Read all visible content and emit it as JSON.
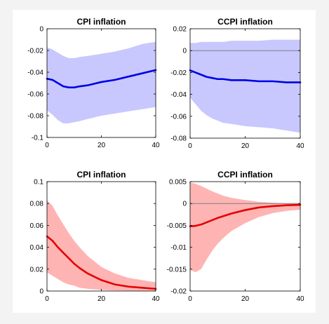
{
  "chart_data": [
    {
      "type": "line",
      "title": "CPI inflation",
      "xlim": [
        0,
        40
      ],
      "ylim": [
        -0.1,
        0
      ],
      "xticks": [
        0,
        20,
        40
      ],
      "xtick_labels": [
        "0",
        "20",
        "40"
      ],
      "yticks": [
        0,
        -0.02,
        -0.04,
        -0.06,
        -0.08,
        -0.1
      ],
      "ytick_labels": [
        "0",
        "-0.02",
        "-0.04",
        "-0.06",
        "-0.08",
        "-0.1"
      ],
      "zero_line": false,
      "line_color": "#0000e6",
      "band_color": "#c8c8ff",
      "x": [
        0,
        2,
        4,
        6,
        8,
        10,
        12,
        15,
        20,
        25,
        30,
        35,
        40
      ],
      "values": [
        -0.046,
        -0.047,
        -0.05,
        -0.053,
        -0.054,
        -0.054,
        -0.053,
        -0.052,
        -0.049,
        -0.047,
        -0.044,
        -0.041,
        -0.038
      ],
      "upper": [
        -0.017,
        -0.019,
        -0.022,
        -0.025,
        -0.027,
        -0.027,
        -0.026,
        -0.025,
        -0.023,
        -0.021,
        -0.018,
        -0.014,
        -0.012
      ],
      "lower": [
        -0.075,
        -0.079,
        -0.084,
        -0.087,
        -0.087,
        -0.086,
        -0.085,
        -0.083,
        -0.08,
        -0.078,
        -0.076,
        -0.074,
        -0.072
      ]
    },
    {
      "type": "line",
      "title": "CCPI inflation",
      "xlim": [
        0,
        40
      ],
      "ylim": [
        -0.08,
        0.02
      ],
      "xticks": [
        0,
        20,
        40
      ],
      "xtick_labels": [
        "0",
        "20",
        "40"
      ],
      "yticks": [
        0.02,
        0,
        -0.02,
        -0.04,
        -0.06,
        -0.08
      ],
      "ytick_labels": [
        "0.02",
        "0",
        "-0.02",
        "-0.04",
        "-0.06",
        "-0.08"
      ],
      "zero_line": true,
      "line_color": "#0000e6",
      "band_color": "#c8c8ff",
      "x": [
        0,
        2,
        4,
        6,
        8,
        10,
        12,
        15,
        20,
        25,
        30,
        35,
        40
      ],
      "values": [
        -0.018,
        -0.02,
        -0.022,
        -0.024,
        -0.025,
        -0.026,
        -0.026,
        -0.027,
        -0.027,
        -0.028,
        -0.028,
        -0.029,
        -0.029
      ],
      "upper": [
        0.007,
        0.007,
        0.008,
        0.008,
        0.008,
        0.008,
        0.008,
        0.009,
        0.009,
        0.009,
        0.01,
        0.01,
        0.01
      ],
      "lower": [
        -0.043,
        -0.049,
        -0.055,
        -0.059,
        -0.062,
        -0.064,
        -0.066,
        -0.067,
        -0.069,
        -0.07,
        -0.071,
        -0.073,
        -0.075
      ]
    },
    {
      "type": "line",
      "title": "CPI inflation",
      "xlim": [
        0,
        40
      ],
      "ylim": [
        0,
        0.1
      ],
      "xticks": [
        0,
        20,
        40
      ],
      "xtick_labels": [
        "0",
        "20",
        "40"
      ],
      "yticks": [
        0.1,
        0.08,
        0.06,
        0.04,
        0.02,
        0
      ],
      "ytick_labels": [
        "0.1",
        "0.08",
        "0.06",
        "0.04",
        "0.02",
        "0"
      ],
      "zero_line": false,
      "line_color": "#e60000",
      "band_color": "#ffb4b4",
      "x": [
        0,
        2,
        4,
        6,
        8,
        10,
        12,
        15,
        20,
        25,
        30,
        35,
        40
      ],
      "values": [
        0.05,
        0.046,
        0.04,
        0.035,
        0.03,
        0.025,
        0.021,
        0.016,
        0.01,
        0.006,
        0.004,
        0.003,
        0.002
      ],
      "upper": [
        0.083,
        0.078,
        0.069,
        0.061,
        0.053,
        0.046,
        0.04,
        0.032,
        0.022,
        0.016,
        0.012,
        0.01,
        0.008
      ],
      "lower": [
        0.017,
        0.014,
        0.011,
        0.008,
        0.006,
        0.005,
        0.003,
        0.002,
        0.001,
        0.0005,
        0.0003,
        0.0002,
        0.0001
      ]
    },
    {
      "type": "line",
      "title": "CCPI inflation",
      "xlim": [
        0,
        40
      ],
      "ylim": [
        -0.02,
        0.005
      ],
      "xticks": [
        0,
        20,
        40
      ],
      "xtick_labels": [
        "0",
        "20",
        "40"
      ],
      "yticks": [
        0.005,
        0,
        -0.005,
        -0.01,
        -0.015,
        -0.02
      ],
      "ytick_labels": [
        "0.005",
        "0",
        "-0.005",
        "-0.01",
        "-0.015",
        "-0.02"
      ],
      "zero_line": true,
      "line_color": "#e60000",
      "band_color": "#ffb4b4",
      "x": [
        0,
        2,
        4,
        6,
        8,
        10,
        12,
        15,
        20,
        25,
        30,
        35,
        40
      ],
      "values": [
        -0.0052,
        -0.0051,
        -0.0048,
        -0.0043,
        -0.0038,
        -0.0033,
        -0.0029,
        -0.0023,
        -0.0015,
        -0.0009,
        -0.0006,
        -0.0004,
        -0.0003
      ],
      "upper": [
        0.0048,
        0.0045,
        0.004,
        0.0034,
        0.0028,
        0.0023,
        0.0018,
        0.0013,
        0.0008,
        0.0004,
        0.0002,
        0.0001,
        0.0001
      ],
      "lower": [
        -0.0152,
        -0.0157,
        -0.015,
        -0.0128,
        -0.0108,
        -0.0092,
        -0.0079,
        -0.0063,
        -0.0045,
        -0.0031,
        -0.0022,
        -0.0017,
        -0.0014
      ]
    }
  ]
}
